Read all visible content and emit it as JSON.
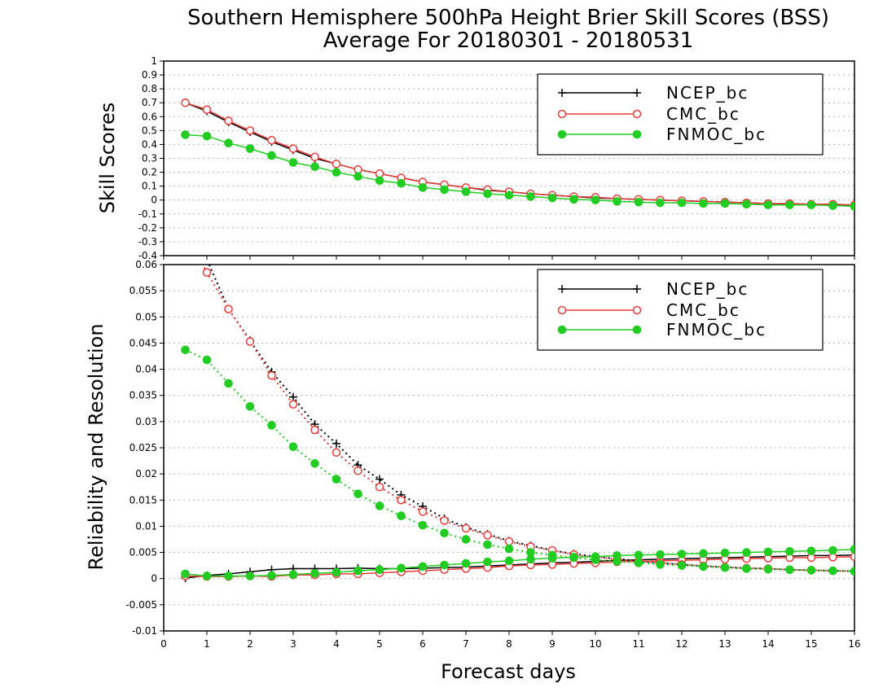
{
  "title": {
    "line1": "Southern Hemisphere 500hPa Height Brier Skill Scores (BSS)",
    "line2": "Average For 20180301 - 20180531"
  },
  "xlabel": "Forecast days",
  "colors": {
    "NCEP_bc": "#000000",
    "CMC_bc": "#e83c3c",
    "FNMOC_bc": "#22cc22",
    "grid": "#b4b4b4"
  },
  "chart_data": [
    {
      "type": "line",
      "panel": "top",
      "ylabel": "Skill Scores",
      "xlim": [
        0,
        16
      ],
      "ylim": [
        -0.4,
        1
      ],
      "xticks": [
        0,
        1,
        2,
        3,
        4,
        5,
        6,
        7,
        8,
        9,
        10,
        11,
        12,
        13,
        14,
        15,
        16
      ],
      "yticks": [
        -0.4,
        -0.3,
        -0.2,
        -0.1,
        0,
        0.1,
        0.2,
        0.3,
        0.4,
        0.5,
        0.6,
        0.7,
        0.8,
        0.9,
        1
      ],
      "ytick_labels": [
        "-0.4",
        "-0.3",
        "-0.2",
        "-0.1",
        "0",
        "0.1",
        "0.2",
        "0.3",
        "0.4",
        "0.5",
        "0.6",
        "0.7",
        "0.8",
        "0.9",
        "1"
      ],
      "grid": "horizontal dotted",
      "legend": {
        "position": "top-right",
        "entries": [
          "NCEP_bc",
          "CMC_bc",
          "FNMOC_bc"
        ]
      },
      "x": [
        0.5,
        1,
        1.5,
        2,
        2.5,
        3,
        3.5,
        4,
        4.5,
        5,
        5.5,
        6,
        6.5,
        7,
        7.5,
        8,
        8.5,
        9,
        9.5,
        10,
        10.5,
        11,
        11.5,
        12,
        12.5,
        13,
        13.5,
        14,
        14.5,
        15,
        15.5,
        16
      ],
      "series": [
        {
          "name": "NCEP_bc",
          "style": "solid",
          "marker": "plus",
          "values": [
            0.7,
            0.64,
            0.56,
            0.49,
            0.42,
            0.36,
            0.3,
            0.26,
            0.22,
            0.19,
            0.16,
            0.13,
            0.11,
            0.09,
            0.07,
            0.06,
            0.045,
            0.035,
            0.025,
            0.015,
            0.01,
            0.005,
            0.0,
            -0.005,
            -0.01,
            -0.015,
            -0.02,
            -0.025,
            -0.03,
            -0.03,
            -0.035,
            -0.04
          ]
        },
        {
          "name": "CMC_bc",
          "style": "solid",
          "marker": "open-circle",
          "values": [
            0.7,
            0.65,
            0.57,
            0.5,
            0.43,
            0.37,
            0.31,
            0.26,
            0.22,
            0.19,
            0.16,
            0.13,
            0.11,
            0.09,
            0.075,
            0.06,
            0.045,
            0.035,
            0.025,
            0.02,
            0.01,
            0.005,
            0.0,
            -0.005,
            -0.01,
            -0.015,
            -0.02,
            -0.025,
            -0.025,
            -0.03,
            -0.03,
            -0.035
          ]
        },
        {
          "name": "FNMOC_bc",
          "style": "solid",
          "marker": "filled-circle",
          "values": [
            0.47,
            0.46,
            0.41,
            0.37,
            0.32,
            0.27,
            0.24,
            0.2,
            0.17,
            0.14,
            0.12,
            0.09,
            0.075,
            0.06,
            0.045,
            0.035,
            0.025,
            0.015,
            0.005,
            0.0,
            -0.01,
            -0.015,
            -0.02,
            -0.02,
            -0.025,
            -0.025,
            -0.03,
            -0.035,
            -0.035,
            -0.035,
            -0.04,
            -0.045
          ]
        }
      ]
    },
    {
      "type": "line",
      "panel": "bottom",
      "ylabel": "Reliability and Resolution",
      "xlim": [
        0,
        16
      ],
      "ylim": [
        -0.01,
        0.06
      ],
      "xticks": [
        0,
        1,
        2,
        3,
        4,
        5,
        6,
        7,
        8,
        9,
        10,
        11,
        12,
        13,
        14,
        15,
        16
      ],
      "yticks": [
        -0.01,
        -0.005,
        0,
        0.005,
        0.01,
        0.015,
        0.02,
        0.025,
        0.03,
        0.035,
        0.04,
        0.045,
        0.05,
        0.055,
        0.06
      ],
      "ytick_labels": [
        "-0.01",
        "-0.005",
        "0",
        "0.005",
        "0.01",
        "0.015",
        "0.02",
        "0.025",
        "0.03",
        "0.035",
        "0.04",
        "0.045",
        "0.05",
        "0.055",
        "0.06"
      ],
      "grid": "horizontal dotted",
      "legend": {
        "position": "top-right",
        "entries": [
          "NCEP_bc",
          "CMC_bc",
          "FNMOC_bc"
        ]
      },
      "x": [
        0.5,
        1,
        1.5,
        2,
        2.5,
        3,
        3.5,
        4,
        4.5,
        5,
        5.5,
        6,
        6.5,
        7,
        7.5,
        8,
        8.5,
        9,
        9.5,
        10,
        10.5,
        11,
        11.5,
        12,
        12.5,
        13,
        13.5,
        14,
        14.5,
        15,
        15.5,
        16
      ],
      "series": [
        {
          "name": "NCEP_bc",
          "style": "solid",
          "marker": "plus",
          "values": [
            0.0001,
            0.0006,
            0.0009,
            0.0013,
            0.0017,
            0.0019,
            0.0019,
            0.0019,
            0.002,
            0.0019,
            0.0019,
            0.002,
            0.0021,
            0.0022,
            0.0024,
            0.0026,
            0.0028,
            0.003,
            0.0031,
            0.0033,
            0.0035,
            0.0036,
            0.0037,
            0.0038,
            0.0039,
            0.004,
            0.0041,
            0.0042,
            0.0043,
            0.0044,
            0.0044,
            0.0045
          ]
        },
        {
          "name": "NCEP_bc",
          "style": "dotted",
          "marker": "plus",
          "values": [
            0.067,
            0.061,
            0.0515,
            0.0455,
            0.0395,
            0.0347,
            0.0295,
            0.0258,
            0.0217,
            0.019,
            0.016,
            0.0138,
            0.0115,
            0.0098,
            0.0085,
            0.0072,
            0.0063,
            0.0054,
            0.0047,
            0.0042,
            0.0038,
            0.0033,
            0.003,
            0.0027,
            0.0024,
            0.0022,
            0.002,
            0.0019,
            0.0017,
            0.0016,
            0.0015,
            0.0014
          ]
        },
        {
          "name": "CMC_bc",
          "style": "solid",
          "marker": "open-circle",
          "values": [
            0.0005,
            0.0004,
            0.0004,
            0.0005,
            0.0004,
            0.0007,
            0.0007,
            0.0009,
            0.0009,
            0.0011,
            0.0013,
            0.0015,
            0.0017,
            0.0019,
            0.0021,
            0.0024,
            0.0026,
            0.0027,
            0.0029,
            0.003,
            0.0032,
            0.0033,
            0.0034,
            0.0035,
            0.0036,
            0.0037,
            0.0038,
            0.0039,
            0.004,
            0.004,
            0.0041,
            0.0042
          ]
        },
        {
          "name": "CMC_bc",
          "style": "dotted",
          "marker": "open-circle",
          "values": [
            0.066,
            0.0585,
            0.0515,
            0.0453,
            0.0388,
            0.0333,
            0.0284,
            0.0241,
            0.0206,
            0.0175,
            0.015,
            0.0128,
            0.0111,
            0.0096,
            0.0083,
            0.0071,
            0.0061,
            0.0054,
            0.0046,
            0.0041,
            0.0037,
            0.0033,
            0.003,
            0.0027,
            0.0024,
            0.0022,
            0.002,
            0.0019,
            0.0017,
            0.0016,
            0.0015,
            0.0014
          ]
        },
        {
          "name": "FNMOC_bc",
          "style": "solid",
          "marker": "filled-circle",
          "values": [
            0.0009,
            0.0005,
            0.0005,
            0.0005,
            0.0006,
            0.0008,
            0.001,
            0.0012,
            0.0015,
            0.0017,
            0.002,
            0.0023,
            0.0026,
            0.0029,
            0.0032,
            0.0034,
            0.0037,
            0.0039,
            0.0041,
            0.0042,
            0.0044,
            0.0045,
            0.0046,
            0.0047,
            0.0048,
            0.0049,
            0.005,
            0.0051,
            0.0052,
            0.0053,
            0.0054,
            0.0056
          ]
        },
        {
          "name": "FNMOC_bc",
          "style": "dotted",
          "marker": "filled-circle",
          "values": [
            0.0437,
            0.0418,
            0.0373,
            0.0329,
            0.0293,
            0.0252,
            0.022,
            0.019,
            0.0162,
            0.0139,
            0.012,
            0.0102,
            0.0087,
            0.0075,
            0.0065,
            0.0057,
            0.005,
            0.0045,
            0.004,
            0.0036,
            0.0033,
            0.003,
            0.0027,
            0.0025,
            0.0023,
            0.0021,
            0.0019,
            0.0018,
            0.0017,
            0.0016,
            0.0015,
            0.0014
          ]
        }
      ]
    }
  ]
}
